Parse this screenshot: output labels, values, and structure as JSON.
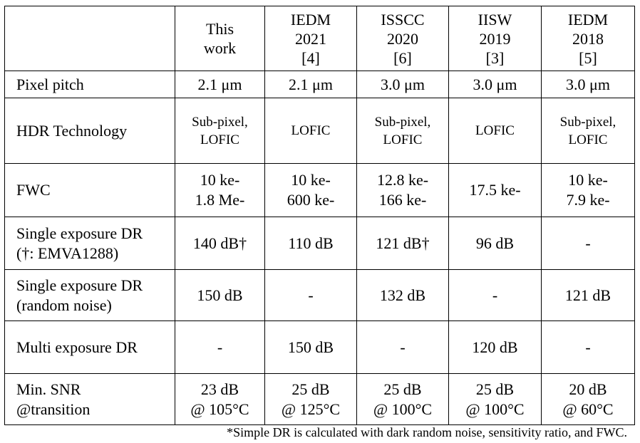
{
  "table": {
    "headers": [
      [
        ""
      ],
      [
        "This",
        "work"
      ],
      [
        "IEDM",
        "2021",
        "[4]"
      ],
      [
        "ISSCC",
        "2020",
        "[6]"
      ],
      [
        "IISW",
        "2019",
        "[3]"
      ],
      [
        "IEDM",
        "2018",
        "[5]"
      ]
    ],
    "rows": [
      {
        "label": [
          "Pixel pitch"
        ],
        "cells": [
          [
            "2.1 μm"
          ],
          [
            "2.1 μm"
          ],
          [
            "3.0 μm"
          ],
          [
            "3.0 μm"
          ],
          [
            "3.0 μm"
          ]
        ]
      },
      {
        "label": [
          "HDR Technology"
        ],
        "cells": [
          [
            "Sub-pixel,",
            "LOFIC"
          ],
          [
            "LOFIC"
          ],
          [
            "Sub-pixel,",
            "LOFIC"
          ],
          [
            "LOFIC"
          ],
          [
            "Sub-pixel,",
            "LOFIC"
          ]
        ]
      },
      {
        "label": [
          "FWC"
        ],
        "cells": [
          [
            "10 ke-",
            "1.8 Me-"
          ],
          [
            "10 ke-",
            "600 ke-"
          ],
          [
            "12.8 ke-",
            "166 ke-"
          ],
          [
            "17.5 ke-"
          ],
          [
            "10 ke-",
            "7.9 ke-"
          ]
        ]
      },
      {
        "label": [
          "Single exposure DR",
          "(†: EMVA1288)"
        ],
        "cells": [
          [
            "140 dB†"
          ],
          [
            "110 dB"
          ],
          [
            "121 dB†"
          ],
          [
            "96 dB"
          ],
          [
            "-"
          ]
        ]
      },
      {
        "label": [
          "Single exposure DR",
          "(random noise)"
        ],
        "cells": [
          [
            "150 dB"
          ],
          [
            "-"
          ],
          [
            "132 dB"
          ],
          [
            "-"
          ],
          [
            "121 dB"
          ]
        ]
      },
      {
        "label": [
          "Multi exposure DR"
        ],
        "cells": [
          [
            "-"
          ],
          [
            "150 dB"
          ],
          [
            "-"
          ],
          [
            "120 dB"
          ],
          [
            "-"
          ]
        ]
      },
      {
        "label": [
          "Min. SNR",
          "@transition"
        ],
        "cells": [
          [
            "23 dB",
            "@ 105°C"
          ],
          [
            "25 dB",
            "@ 125°C"
          ],
          [
            "25 dB",
            "@ 100°C"
          ],
          [
            "25 dB",
            "@ 100°C"
          ],
          [
            "20 dB",
            "@ 60°C"
          ]
        ]
      }
    ]
  },
  "footnote": "*Simple DR is calculated with dark random noise, sensitivity ratio, and FWC."
}
